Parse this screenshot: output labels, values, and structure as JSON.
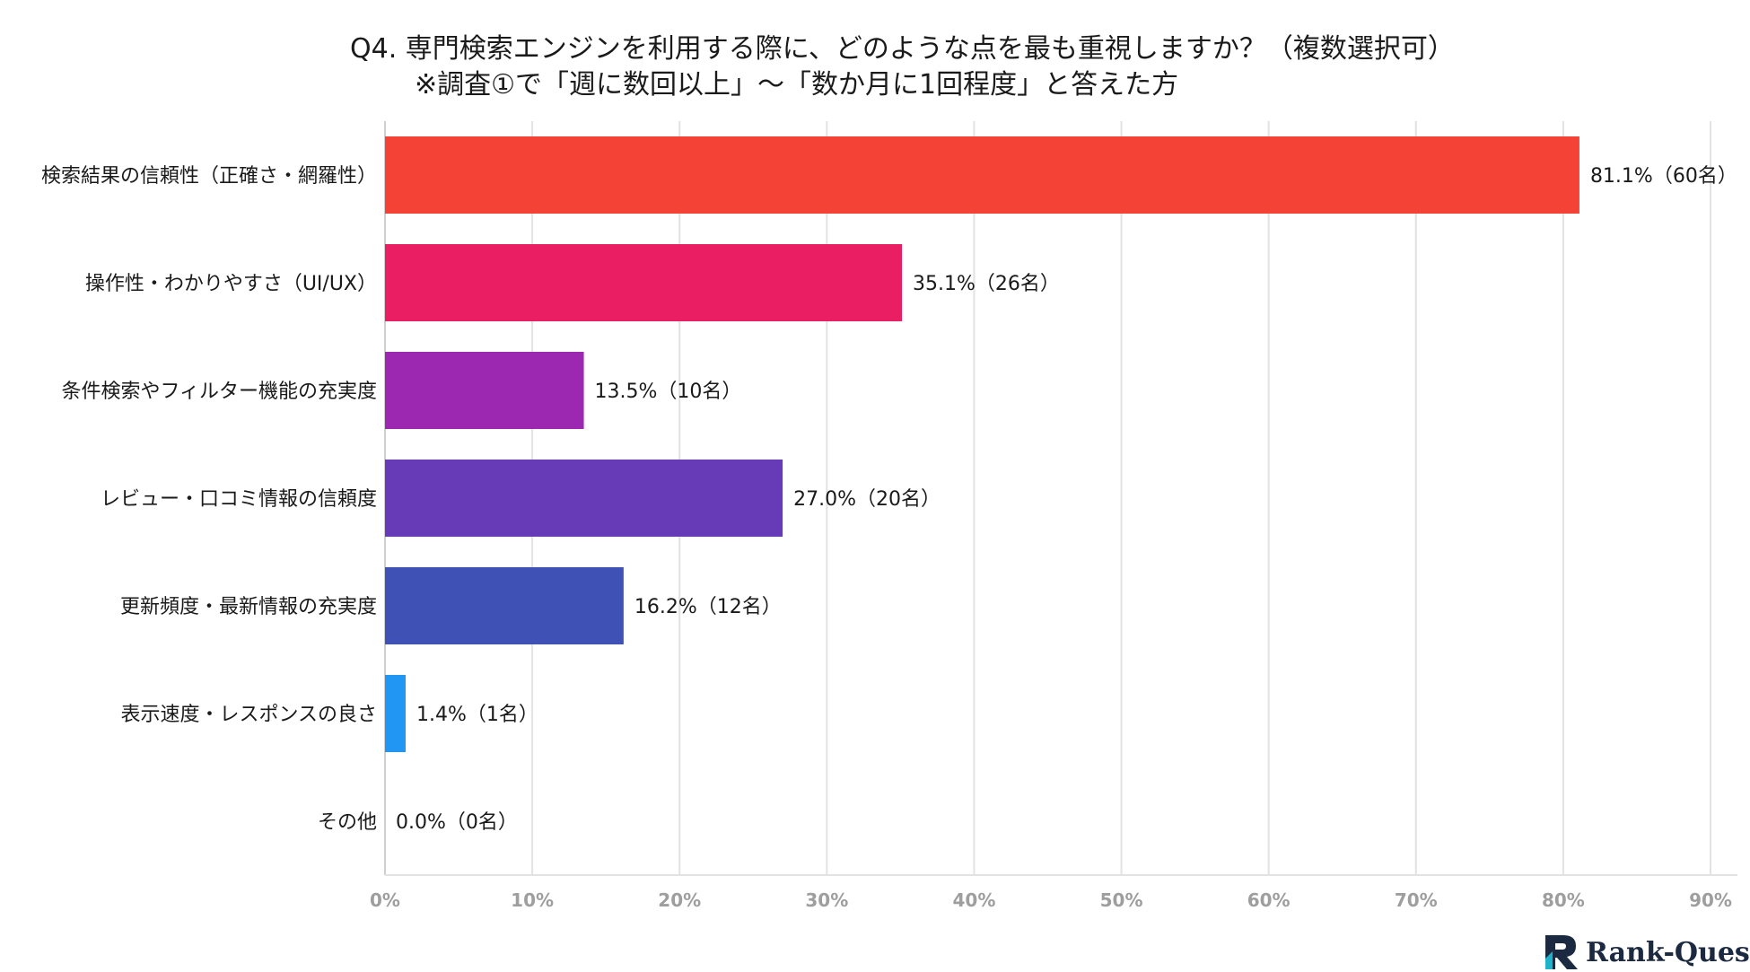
{
  "chart_data": {
    "type": "bar",
    "orientation": "horizontal",
    "title": "Q4. 専門検索エンジンを利用する際に、どのような点を最も重視しますか？（複数選択可）",
    "subtitle": "※調査①で「週に数回以上」～「数か月に1回程度」と答えた方",
    "categories": [
      "検索結果の信頼性（正確さ・網羅性）",
      "操作性・わかりやすさ（UI/UX）",
      "条件検索やフィルター機能の充実度",
      "レビュー・口コミ情報の信頼度",
      "更新頻度・最新情報の充実度",
      "表示速度・レスポンスの良さ",
      "その他"
    ],
    "values": [
      81.1,
      35.1,
      13.5,
      27.0,
      16.2,
      1.4,
      0.0
    ],
    "value_labels": [
      "81.1%（60名）",
      "35.1%（26名）",
      "13.5%（10名）",
      "27.0%（20名）",
      "16.2%（12名）",
      "1.4%（1名）",
      "0.0%（0名）"
    ],
    "colors": [
      "#f44336",
      "#e91e63",
      "#9c27b0",
      "#673ab7",
      "#3f51b5",
      "#2196f3",
      "#03a9f4"
    ],
    "xlim": [
      0,
      90
    ],
    "xticks": [
      0,
      10,
      20,
      30,
      40,
      50,
      60,
      70,
      80,
      90
    ],
    "xtick_labels": [
      "0%",
      "10%",
      "20%",
      "30%",
      "40%",
      "50%",
      "60%",
      "70%",
      "80%",
      "90%"
    ],
    "grid": true,
    "xlabel": "",
    "ylabel": ""
  },
  "branding": {
    "logo_text": "Rank-Quest",
    "logo_icon": "rank-quest-logo-icon",
    "brand_color": "#1b2a41",
    "accent_color": "#20b2c8"
  }
}
